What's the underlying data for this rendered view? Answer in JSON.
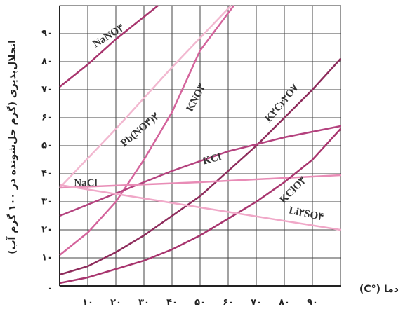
{
  "chart_data": {
    "type": "line",
    "y_label": "انحلال‌پذیری (گرم حل‌شونده در ۱۰۰ گرم آب)",
    "x_label": "دما (°C)",
    "xlim": [
      0,
      100
    ],
    "ylim": [
      0,
      100
    ],
    "xticks": [
      {
        "value": 10,
        "label": "۱۰"
      },
      {
        "value": 20,
        "label": "۲۰"
      },
      {
        "value": 30,
        "label": "۳۰"
      },
      {
        "value": 40,
        "label": "۴۰"
      },
      {
        "value": 50,
        "label": "۵۰"
      },
      {
        "value": 60,
        "label": "۶۰"
      },
      {
        "value": 70,
        "label": "۷۰"
      },
      {
        "value": 80,
        "label": "۸۰"
      },
      {
        "value": 90,
        "label": "۹۰"
      }
    ],
    "yticks": [
      {
        "value": 0,
        "label": "۰"
      },
      {
        "value": 10,
        "label": "۱۰"
      },
      {
        "value": 20,
        "label": "۲۰"
      },
      {
        "value": 30,
        "label": "۳۰"
      },
      {
        "value": 40,
        "label": "۴۰"
      },
      {
        "value": 50,
        "label": "۵۰"
      },
      {
        "value": 60,
        "label": "۶۰"
      },
      {
        "value": 70,
        "label": "۷۰"
      },
      {
        "value": 80,
        "label": "۸۰"
      },
      {
        "value": 90,
        "label": "۹۰"
      }
    ],
    "grid": true,
    "series": [
      {
        "name": "NaNO۳",
        "color": "#a8356e",
        "x": [
          0,
          10,
          20,
          30,
          35
        ],
        "values": [
          71,
          79,
          88,
          96,
          100
        ]
      },
      {
        "name": "Pb(NO۳)۲",
        "color": "#f2b8d0",
        "x": [
          0,
          20,
          40,
          61
        ],
        "values": [
          35,
          56,
          78,
          100
        ]
      },
      {
        "name": "KNO۳",
        "color": "#d4649c",
        "x": [
          0,
          10,
          20,
          30,
          40,
          50,
          62
        ],
        "values": [
          11,
          19,
          30,
          45,
          62,
          84,
          100
        ]
      },
      {
        "name": "K۲Cr۲O۷",
        "color": "#8e2c5c",
        "x": [
          0,
          10,
          20,
          30,
          40,
          50,
          60,
          70,
          80,
          90,
          100
        ],
        "values": [
          4,
          7,
          12,
          18,
          25,
          32,
          41,
          50,
          60,
          70,
          81
        ]
      },
      {
        "name": "KCl",
        "color": "#b4427e",
        "x": [
          0,
          20,
          40,
          60,
          80,
          100
        ],
        "values": [
          25,
          33,
          41,
          48,
          53,
          57
        ]
      },
      {
        "name": "NaCl",
        "color": "#e88cb6",
        "x": [
          0,
          50,
          100
        ],
        "values": [
          35,
          37,
          39.5
        ]
      },
      {
        "name": "KClO۳",
        "color": "#a8356e",
        "x": [
          0,
          10,
          20,
          30,
          40,
          50,
          60,
          70,
          80,
          90,
          100
        ],
        "values": [
          1,
          3,
          6,
          9,
          13,
          18,
          24,
          30,
          37,
          45,
          56
        ]
      },
      {
        "name": "Li۲SO۴",
        "color": "#f0a8c8",
        "x": [
          0,
          50,
          100
        ],
        "values": [
          36,
          28,
          20
        ]
      }
    ]
  }
}
